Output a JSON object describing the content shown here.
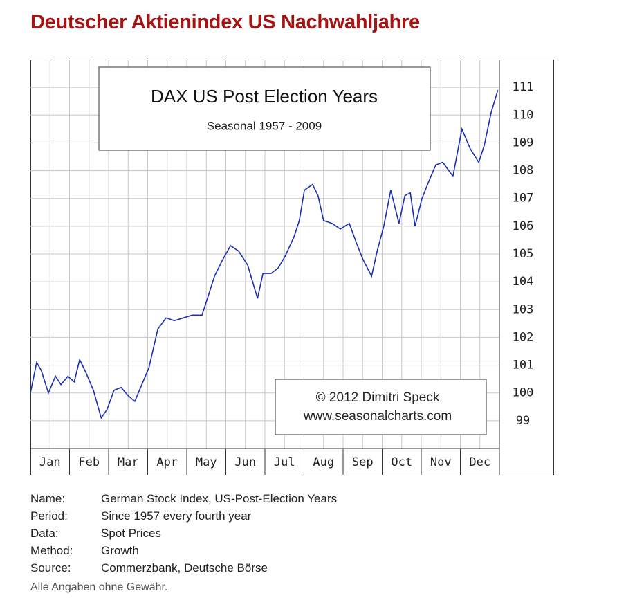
{
  "header": {
    "title": "Deutscher Aktienindex US Nachwahljahre"
  },
  "chart_data": {
    "type": "line",
    "title": "DAX US Post Election Years",
    "subtitle": "Seasonal 1957 - 2009",
    "annotations": [
      "© 2012  Dimitri Speck",
      "www.seasonalcharts.com"
    ],
    "xlim": [
      0,
      12
    ],
    "xticks": [
      {
        "value": 0.5,
        "label": "Jan"
      },
      {
        "value": 1.5,
        "label": "Feb"
      },
      {
        "value": 2.5,
        "label": "Mar"
      },
      {
        "value": 3.5,
        "label": "Apr"
      },
      {
        "value": 4.5,
        "label": "May"
      },
      {
        "value": 5.5,
        "label": "Jun"
      },
      {
        "value": 6.5,
        "label": "Jul"
      },
      {
        "value": 7.5,
        "label": "Aug"
      },
      {
        "value": 8.5,
        "label": "Sep"
      },
      {
        "value": 9.5,
        "label": "Oct"
      },
      {
        "value": 10.5,
        "label": "Nov"
      },
      {
        "value": 11.5,
        "label": "Dec"
      }
    ],
    "ylim": [
      98,
      112
    ],
    "yticks": [
      99,
      100,
      101,
      102,
      103,
      104,
      105,
      106,
      107,
      108,
      109,
      110,
      111
    ],
    "grid": true,
    "series": [
      {
        "color": "#1c2fb0",
        "x": [
          0,
          0.16,
          0.28,
          0.46,
          0.64,
          0.78,
          0.96,
          1.12,
          1.26,
          1.43,
          1.61,
          1.81,
          1.96,
          2.14,
          2.32,
          2.5,
          2.67,
          2.85,
          3.03,
          3.26,
          3.47,
          3.68,
          3.91,
          4.14,
          4.39,
          4.53,
          4.71,
          4.92,
          5.12,
          5.33,
          5.56,
          5.81,
          5.95,
          6.16,
          6.34,
          6.51,
          6.74,
          6.88,
          7.01,
          7.22,
          7.36,
          7.5,
          7.72,
          7.93,
          8.16,
          8.34,
          8.51,
          8.73,
          8.87,
          9.04,
          9.22,
          9.43,
          9.58,
          9.72,
          9.84,
          10.02,
          10.19,
          10.37,
          10.55,
          10.81,
          11.04,
          11.25,
          11.47,
          11.61,
          11.79,
          11.96
        ],
        "values": [
          100.0,
          101.1,
          100.8,
          100.0,
          100.6,
          100.3,
          100.6,
          100.4,
          101.2,
          100.7,
          100.1,
          99.1,
          99.4,
          100.1,
          100.2,
          99.9,
          99.7,
          100.3,
          100.9,
          102.3,
          102.7,
          102.6,
          102.7,
          102.8,
          102.8,
          103.4,
          104.2,
          104.8,
          105.3,
          105.1,
          104.6,
          103.4,
          104.3,
          104.3,
          104.5,
          104.9,
          105.6,
          106.2,
          107.3,
          107.5,
          107.1,
          106.2,
          106.1,
          105.9,
          106.1,
          105.4,
          104.8,
          104.2,
          105.1,
          106.0,
          107.3,
          106.1,
          107.1,
          107.2,
          106.0,
          107.0,
          107.6,
          108.2,
          108.3,
          107.8,
          109.5,
          108.8,
          108.3,
          108.9,
          110.1,
          110.9
        ]
      }
    ]
  },
  "info": {
    "rows": [
      [
        "Name:",
        "German Stock Index, US-Post-Election Years"
      ],
      [
        "Period:",
        "Since 1957 every fourth year"
      ],
      [
        "Data:",
        "Spot Prices"
      ],
      [
        "Method:",
        "Growth"
      ],
      [
        "Source:",
        "Commerzbank, Deutsche Börse"
      ]
    ],
    "note": "Alle Angaben ohne Gewähr."
  }
}
